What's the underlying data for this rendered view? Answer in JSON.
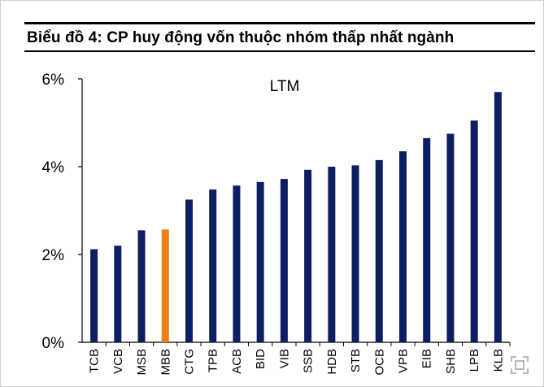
{
  "colors": {
    "bar": "#0d1f63",
    "highlight_bar": "#f07d1a",
    "axis": "#000000"
  },
  "icons": {
    "expand": "expand-icon"
  },
  "chart_data": {
    "type": "bar",
    "title": "Biểu đồ 4:  CP huy động vốn thuộc nhóm thấp nhất ngành",
    "annotation": "LTM",
    "categories": [
      "TCB",
      "VCB",
      "MSB",
      "MBB",
      "CTG",
      "TPB",
      "ACB",
      "BID",
      "VIB",
      "SSB",
      "HDB",
      "STB",
      "OCB",
      "VPB",
      "EIB",
      "SHB",
      "LPB",
      "KLB"
    ],
    "values": [
      2.12,
      2.2,
      2.55,
      2.57,
      3.25,
      3.48,
      3.57,
      3.65,
      3.72,
      3.93,
      4.0,
      4.03,
      4.15,
      4.35,
      4.65,
      4.75,
      5.05,
      5.7
    ],
    "highlight": "MBB",
    "ylim": [
      0,
      6
    ],
    "yticks": [
      0,
      2,
      4,
      6
    ],
    "ytick_labels": [
      "0%",
      "2%",
      "4%",
      "6%"
    ],
    "xlabel": "",
    "ylabel": "",
    "grid": false,
    "legend": "none"
  }
}
